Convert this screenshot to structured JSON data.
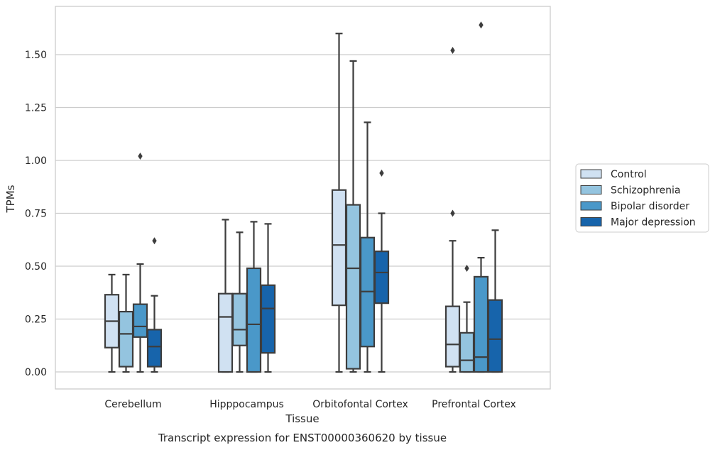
{
  "chart_data": {
    "type": "boxplot",
    "title": "Transcript expression for ENST00000360620 by tissue",
    "xlabel": "Tissue",
    "ylabel": "TPMs",
    "ylim": [
      -0.08,
      1.73
    ],
    "yticks": [
      "0.00",
      "0.25",
      "0.50",
      "0.75",
      "1.00",
      "1.25",
      "1.50"
    ],
    "ytick_values": [
      0.0,
      0.25,
      0.5,
      0.75,
      1.0,
      1.25,
      1.5
    ],
    "grid": "horizontal",
    "legend_position": "right",
    "categories": [
      "Cerebellum",
      "Hipppocampus",
      "Orbitofontal Cortex",
      "Prefrontal Cortex"
    ],
    "series": [
      {
        "name": "Control",
        "color": "#d0e1f2",
        "boxes": [
          {
            "whislo": 0.0,
            "q1": 0.115,
            "med": 0.24,
            "q3": 0.365,
            "whishi": 0.46,
            "fliers": []
          },
          {
            "whislo": 0.0,
            "q1": 0.0,
            "med": 0.26,
            "q3": 0.37,
            "whishi": 0.72,
            "fliers": []
          },
          {
            "whislo": 0.0,
            "q1": 0.315,
            "med": 0.6,
            "q3": 0.86,
            "whishi": 1.6,
            "fliers": []
          },
          {
            "whislo": 0.0,
            "q1": 0.025,
            "med": 0.13,
            "q3": 0.31,
            "whishi": 0.62,
            "fliers": [
              0.75,
              1.52
            ]
          }
        ]
      },
      {
        "name": "Schizophrenia",
        "color": "#94c4df",
        "boxes": [
          {
            "whislo": 0.0,
            "q1": 0.025,
            "med": 0.18,
            "q3": 0.285,
            "whishi": 0.46,
            "fliers": []
          },
          {
            "whislo": 0.0,
            "q1": 0.125,
            "med": 0.2,
            "q3": 0.37,
            "whishi": 0.66,
            "fliers": []
          },
          {
            "whislo": 0.0,
            "q1": 0.015,
            "med": 0.49,
            "q3": 0.79,
            "whishi": 1.47,
            "fliers": []
          },
          {
            "whislo": 0.0,
            "q1": 0.0,
            "med": 0.055,
            "q3": 0.185,
            "whishi": 0.33,
            "fliers": [
              0.49
            ]
          }
        ]
      },
      {
        "name": "Bipolar disorder",
        "color": "#4a98c9",
        "boxes": [
          {
            "whislo": 0.0,
            "q1": 0.165,
            "med": 0.215,
            "q3": 0.32,
            "whishi": 0.51,
            "fliers": [
              1.02
            ]
          },
          {
            "whislo": 0.0,
            "q1": 0.0,
            "med": 0.225,
            "q3": 0.49,
            "whishi": 0.71,
            "fliers": []
          },
          {
            "whislo": 0.0,
            "q1": 0.12,
            "med": 0.38,
            "q3": 0.635,
            "whishi": 1.18,
            "fliers": []
          },
          {
            "whislo": 0.0,
            "q1": 0.0,
            "med": 0.07,
            "q3": 0.45,
            "whishi": 0.54,
            "fliers": [
              1.64
            ]
          }
        ]
      },
      {
        "name": "Major depression",
        "color": "#1764ab",
        "boxes": [
          {
            "whislo": 0.0,
            "q1": 0.025,
            "med": 0.12,
            "q3": 0.2,
            "whishi": 0.36,
            "fliers": [
              0.62
            ]
          },
          {
            "whislo": 0.0,
            "q1": 0.09,
            "med": 0.3,
            "q3": 0.41,
            "whishi": 0.7,
            "fliers": []
          },
          {
            "whislo": 0.0,
            "q1": 0.325,
            "med": 0.47,
            "q3": 0.57,
            "whishi": 0.75,
            "fliers": [
              0.94
            ]
          },
          {
            "whislo": 0.0,
            "q1": 0.0,
            "med": 0.155,
            "q3": 0.34,
            "whishi": 0.67,
            "fliers": []
          }
        ]
      }
    ]
  }
}
